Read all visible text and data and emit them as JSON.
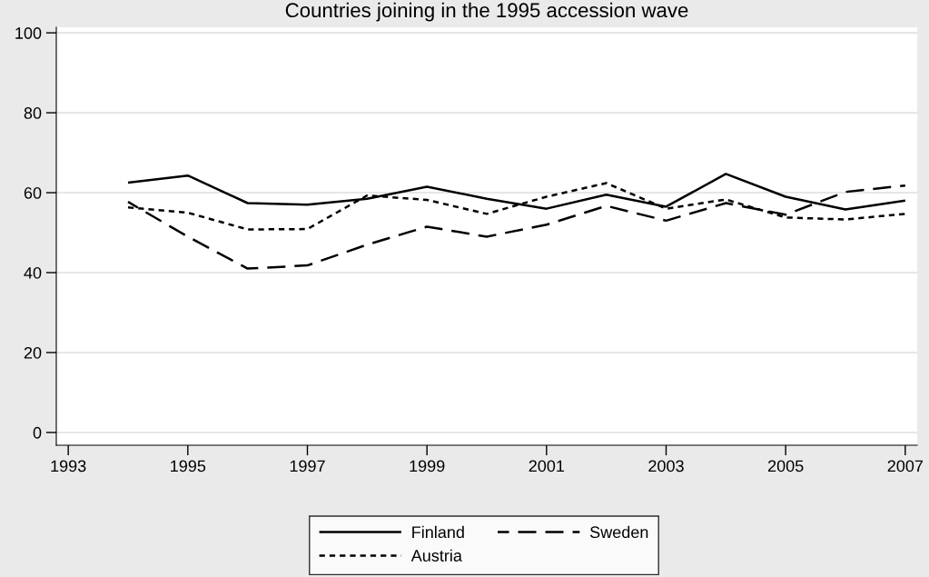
{
  "chart_data": {
    "type": "line",
    "title": "Countries joining in the 1995 accession wave",
    "x": [
      1994,
      1995,
      1996,
      1997,
      1998,
      1999,
      2000,
      2001,
      2002,
      2003,
      2004,
      2005,
      2006,
      2007
    ],
    "series": [
      {
        "name": "Finland",
        "color": "#000000",
        "line_style": "solid",
        "values": [
          62.5,
          64.3,
          57.4,
          57,
          58.5,
          61.5,
          58.5,
          56,
          59.5,
          56.5,
          64.7,
          59,
          55.8,
          58
        ]
      },
      {
        "name": "Sweden",
        "color": "#000000",
        "line_style": "dashed",
        "values": [
          57.7,
          49,
          41,
          41.8,
          47,
          51.5,
          49,
          52,
          56.7,
          53,
          57.4,
          54.5,
          60.2,
          61.8
        ]
      },
      {
        "name": "Austria",
        "color": "#000000",
        "line_style": "dotted",
        "values": [
          56.3,
          55,
          50.8,
          50.9,
          59.3,
          58.2,
          54.7,
          59,
          62.4,
          56,
          58.3,
          53.8,
          53.3,
          54.7
        ]
      }
    ],
    "xlim": [
      1992.8,
      2007.2
    ],
    "xticks": [
      1993,
      1995,
      1997,
      1999,
      2001,
      2003,
      2005,
      2007
    ],
    "ylim": [
      -3.2,
      101.4
    ],
    "yticks": [
      0,
      20,
      40,
      60,
      80,
      100
    ],
    "grid": "y",
    "legend": "bottom",
    "marker": "none"
  }
}
